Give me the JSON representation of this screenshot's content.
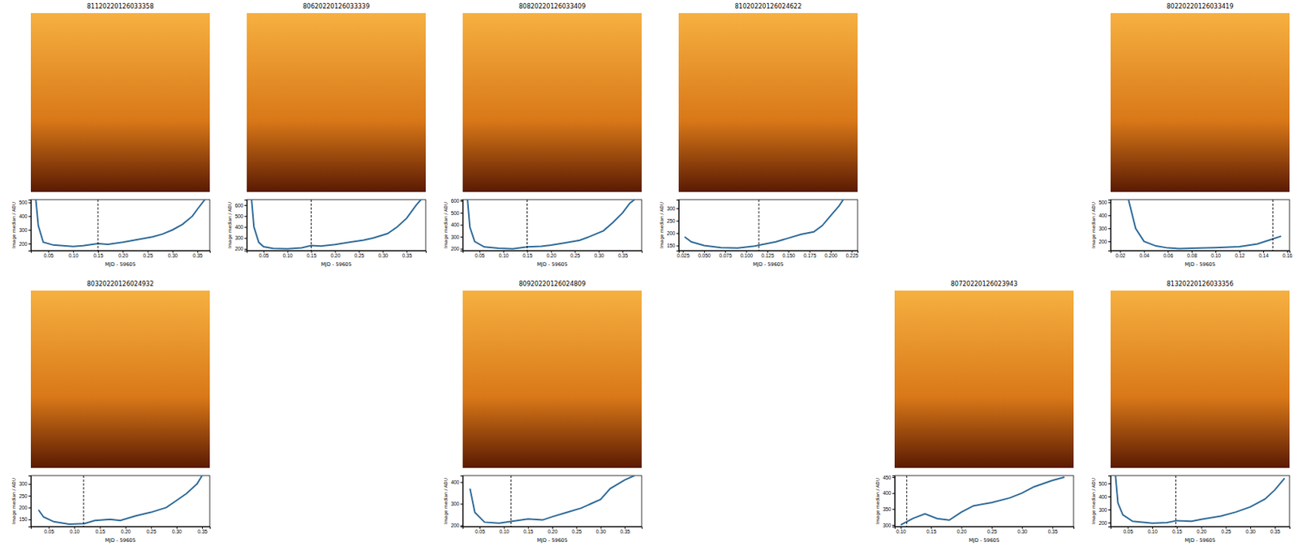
{
  "chart_data": [
    {
      "type": "line",
      "title": "81120220126033358",
      "x_label": "MJD - 59605",
      "y_label": "Image median / ADU",
      "color": "#2f6b9a",
      "x": [
        0.025,
        0.03,
        0.04,
        0.06,
        0.1,
        0.12,
        0.15,
        0.17,
        0.2,
        0.23,
        0.26,
        0.28,
        0.3,
        0.32,
        0.34,
        0.35,
        0.365
      ],
      "values": [
        520,
        330,
        210,
        190,
        180,
        185,
        200,
        195,
        210,
        230,
        250,
        270,
        300,
        340,
        400,
        450,
        520
      ],
      "vline": 0.15,
      "xlim": [
        0.015,
        0.375
      ],
      "ylim": [
        150,
        520
      ],
      "xticks": [
        0.05,
        {
          "value": 0.1,
          "label": "0.10"
        },
        0.15,
        {
          "value": 0.2,
          "label": "0.20"
        },
        0.25,
        {
          "value": 0.3,
          "label": "0.30"
        },
        0.35
      ],
      "yticks": [
        200,
        300,
        400,
        500
      ]
    },
    {
      "type": "line",
      "title": "80620220126033339",
      "x_label": "MJD - 59605",
      "y_label": "Image median / ADU",
      "color": "#2f6b9a",
      "x": [
        0.025,
        0.03,
        0.04,
        0.05,
        0.07,
        0.1,
        0.13,
        0.15,
        0.17,
        0.2,
        0.23,
        0.26,
        0.28,
        0.31,
        0.33,
        0.35,
        0.37,
        0.38
      ],
      "values": [
        650,
        400,
        260,
        220,
        205,
        200,
        210,
        230,
        225,
        240,
        260,
        280,
        300,
        340,
        400,
        480,
        600,
        650
      ],
      "vline": 0.15,
      "xlim": [
        0.015,
        0.39
      ],
      "ylim": [
        185,
        650
      ],
      "xticks": [
        0.05,
        {
          "value": 0.1,
          "label": "0.10"
        },
        0.15,
        {
          "value": 0.2,
          "label": "0.20"
        },
        0.25,
        {
          "value": 0.3,
          "label": "0.30"
        },
        0.35
      ],
      "yticks": [
        200,
        300,
        400,
        500,
        600
      ]
    },
    {
      "type": "line",
      "title": "80820220126033409",
      "x_label": "MJD - 59605",
      "y_label": "Image median / ADU",
      "color": "#2f6b9a",
      "x": [
        0.025,
        0.03,
        0.04,
        0.06,
        0.09,
        0.12,
        0.15,
        0.18,
        0.2,
        0.23,
        0.26,
        0.28,
        0.31,
        0.33,
        0.35,
        0.365,
        0.375
      ],
      "values": [
        610,
        380,
        260,
        215,
        205,
        200,
        215,
        220,
        230,
        250,
        270,
        300,
        350,
        420,
        500,
        580,
        610
      ],
      "vline": 0.15,
      "xlim": [
        0.015,
        0.39
      ],
      "ylim": [
        185,
        610
      ],
      "xticks": [
        0.05,
        {
          "value": 0.1,
          "label": "0.10"
        },
        0.15,
        {
          "value": 0.2,
          "label": "0.20"
        },
        0.25,
        {
          "value": 0.3,
          "label": "0.30"
        },
        0.35
      ],
      "yticks": [
        200,
        300,
        400,
        500,
        600
      ]
    },
    {
      "type": "line",
      "title": "81020220126024622",
      "x_label": "MJD - 59605",
      "y_label": "Image median / ADU",
      "color": "#2f6b9a",
      "x": [
        0.027,
        0.035,
        0.05,
        0.07,
        0.09,
        0.11,
        0.12,
        0.135,
        0.15,
        0.165,
        0.18,
        0.19,
        0.2,
        0.21,
        0.215
      ],
      "values": [
        185,
        165,
        150,
        142,
        140,
        148,
        155,
        165,
        180,
        195,
        205,
        230,
        270,
        310,
        335
      ],
      "vline": 0.115,
      "xlim": [
        0.02,
        0.232
      ],
      "ylim": [
        130,
        335
      ],
      "xticks": [
        0.025,
        {
          "value": 0.05,
          "label": "0.050"
        },
        0.075,
        {
          "value": 0.1,
          "label": "0.100"
        },
        0.125,
        {
          "value": 0.15,
          "label": "0.150"
        },
        0.175,
        {
          "value": 0.2,
          "label": "0.200"
        },
        0.225
      ],
      "yticks": [
        150,
        200,
        250,
        300
      ]
    },
    {
      "type": "line",
      "title": "80220220126033419",
      "x_label": "MJD - 59605",
      "y_label": "Image median / ADU",
      "color": "#2f6b9a",
      "x": [
        0.027,
        0.033,
        0.04,
        0.05,
        0.06,
        0.07,
        0.08,
        0.1,
        0.12,
        0.135,
        0.145,
        0.155
      ],
      "values": [
        520,
        300,
        200,
        165,
        150,
        145,
        148,
        152,
        160,
        180,
        210,
        240
      ],
      "vline": 0.148,
      "xlim": [
        0.012,
        0.162
      ],
      "ylim": [
        130,
        520
      ],
      "xticks": [
        0.02,
        0.04,
        0.06,
        0.08,
        {
          "value": 0.1,
          "label": "0.10"
        },
        0.12,
        0.14,
        0.16
      ],
      "yticks": [
        200,
        300,
        400,
        500
      ]
    },
    {
      "type": "line",
      "title": "80320220126024932",
      "x_label": "MJD - 59605",
      "y_label": "Image median / ADU",
      "color": "#2f6b9a",
      "x": [
        0.03,
        0.04,
        0.06,
        0.09,
        0.12,
        0.14,
        0.17,
        0.19,
        0.22,
        0.25,
        0.28,
        0.3,
        0.32,
        0.34,
        0.35
      ],
      "values": [
        190,
        160,
        140,
        130,
        132,
        145,
        150,
        145,
        165,
        180,
        200,
        230,
        260,
        300,
        335
      ],
      "vline": 0.118,
      "xlim": [
        0.015,
        0.365
      ],
      "ylim": [
        120,
        335
      ],
      "xticks": [
        0.05,
        {
          "value": 0.1,
          "label": "0.10"
        },
        0.15,
        {
          "value": 0.2,
          "label": "0.20"
        },
        0.25,
        {
          "value": 0.3,
          "label": "0.30"
        },
        0.35
      ],
      "yticks": [
        150,
        200,
        250,
        300
      ]
    },
    {
      "type": "line",
      "title": "80920220126024809",
      "x_label": "MJD - 59605",
      "y_label": "Image median / ADU",
      "color": "#2f6b9a",
      "x": [
        0.03,
        0.04,
        0.06,
        0.09,
        0.12,
        0.15,
        0.18,
        0.2,
        0.23,
        0.26,
        0.28,
        0.3,
        0.32,
        0.35,
        0.37
      ],
      "values": [
        370,
        260,
        215,
        210,
        220,
        230,
        225,
        240,
        260,
        280,
        300,
        320,
        370,
        410,
        430
      ],
      "vline": 0.115,
      "xlim": [
        0.015,
        0.385
      ],
      "ylim": [
        195,
        430
      ],
      "xticks": [
        0.05,
        {
          "value": 0.1,
          "label": "0.10"
        },
        0.15,
        {
          "value": 0.2,
          "label": "0.20"
        },
        0.25,
        {
          "value": 0.3,
          "label": "0.30"
        },
        0.35
      ],
      "yticks": [
        200,
        300,
        400
      ]
    },
    {
      "type": "line",
      "title": "80720220126023943",
      "x_label": "MJD - 59605",
      "y_label": "Image median / ADU",
      "color": "#2f6b9a",
      "x": [
        0.1,
        0.11,
        0.12,
        0.14,
        0.16,
        0.18,
        0.2,
        0.22,
        0.25,
        0.28,
        0.3,
        0.32,
        0.35,
        0.37
      ],
      "values": [
        300,
        310,
        320,
        335,
        320,
        315,
        340,
        360,
        370,
        385,
        400,
        420,
        440,
        450
      ],
      "vline": 0.11,
      "xlim": [
        0.09,
        0.385
      ],
      "ylim": [
        295,
        455
      ],
      "xticks": [
        {
          "value": 0.1,
          "label": "0.10"
        },
        0.15,
        {
          "value": 0.2,
          "label": "0.20"
        },
        0.25,
        {
          "value": 0.3,
          "label": "0.30"
        },
        0.35
      ],
      "yticks": [
        300,
        350,
        400,
        450
      ]
    },
    {
      "type": "line",
      "title": "81320220126033356",
      "x_label": "MJD - 59605",
      "y_label": "Image median / ADU",
      "color": "#2f6b9a",
      "x": [
        0.025,
        0.03,
        0.04,
        0.06,
        0.1,
        0.13,
        0.15,
        0.18,
        0.2,
        0.24,
        0.27,
        0.3,
        0.33,
        0.35,
        0.37
      ],
      "values": [
        560,
        350,
        260,
        210,
        195,
        200,
        215,
        210,
        225,
        250,
        280,
        320,
        380,
        450,
        540
      ],
      "vline": 0.148,
      "xlim": [
        0.015,
        0.38
      ],
      "ylim": [
        170,
        560
      ],
      "xticks": [
        0.05,
        {
          "value": 0.1,
          "label": "0.10"
        },
        0.15,
        {
          "value": 0.2,
          "label": "0.20"
        },
        0.25,
        {
          "value": 0.3,
          "label": "0.30"
        },
        0.35
      ],
      "yticks": [
        200,
        300,
        400,
        500
      ]
    }
  ]
}
